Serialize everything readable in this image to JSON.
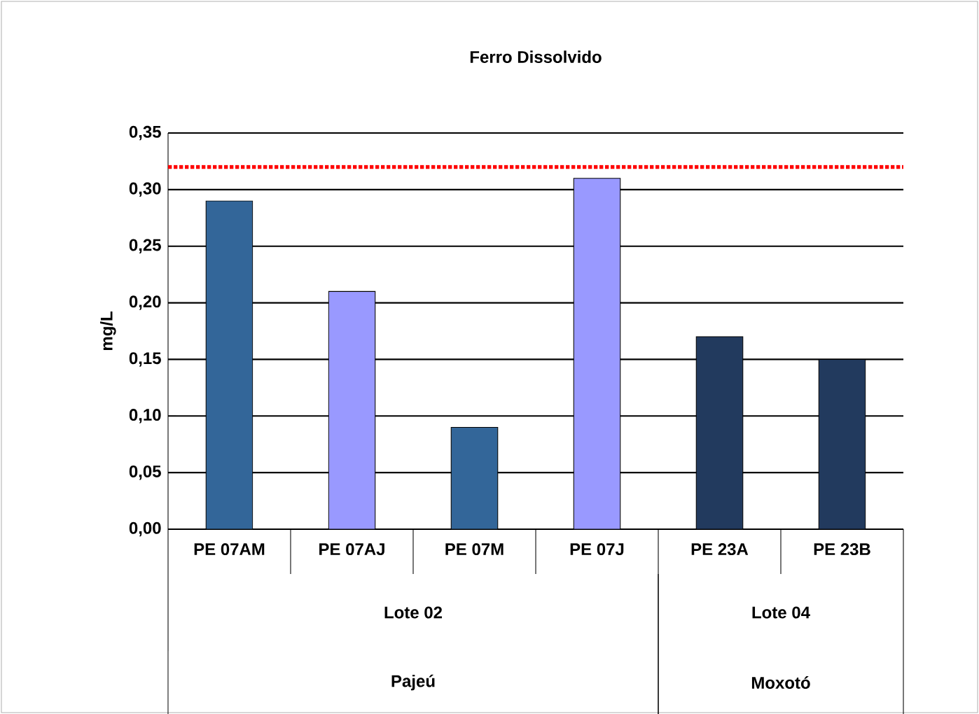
{
  "chart_data": {
    "type": "bar",
    "title": "Ferro Dissolvido",
    "ylabel": "mg/L",
    "categories": [
      "PE 07AM",
      "PE 07AJ",
      "PE 07M",
      "PE 07J",
      "PE 23A",
      "PE 23B"
    ],
    "values": [
      0.29,
      0.21,
      0.09,
      0.31,
      0.17,
      0.15
    ],
    "colors": [
      "#336699",
      "#9999ff",
      "#336699",
      "#9999ff",
      "#223a5e",
      "#223a5e"
    ],
    "ylim": [
      0,
      0.35
    ],
    "yticks": [
      {
        "value": 0,
        "label": "0,00"
      },
      {
        "value": 0.05,
        "label": "0,05"
      },
      {
        "value": 0.1,
        "label": "0,10"
      },
      {
        "value": 0.15,
        "label": "0,15"
      },
      {
        "value": 0.2,
        "label": "0,20"
      },
      {
        "value": 0.25,
        "label": "0,25"
      },
      {
        "value": 0.3,
        "label": "0,30"
      },
      {
        "value": 0.35,
        "label": "0,35"
      }
    ],
    "grid": "y",
    "ref_lines": [
      {
        "axis": "y",
        "value": 0.32,
        "color": "#ff0000",
        "line_style": "dotted"
      }
    ],
    "annotations": [
      "Lote 02",
      "Lote 04",
      "Pajeú",
      "Moxotó"
    ]
  }
}
